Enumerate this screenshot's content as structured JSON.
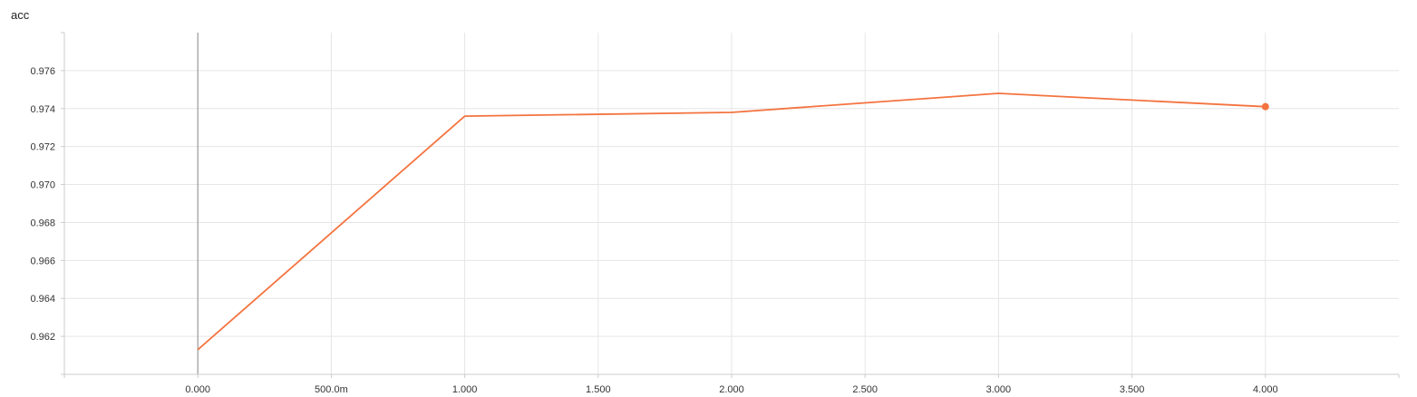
{
  "chart_data": {
    "type": "line",
    "title": "acc",
    "xlabel": "",
    "ylabel": "",
    "x_ticks": [
      {
        "value": 0.0,
        "label": "0.000"
      },
      {
        "value": 0.5,
        "label": "500.0m"
      },
      {
        "value": 1.0,
        "label": "1.000"
      },
      {
        "value": 1.5,
        "label": "1.500"
      },
      {
        "value": 2.0,
        "label": "2.000"
      },
      {
        "value": 2.5,
        "label": "2.500"
      },
      {
        "value": 3.0,
        "label": "3.000"
      },
      {
        "value": 3.5,
        "label": "3.500"
      },
      {
        "value": 4.0,
        "label": "4.000"
      }
    ],
    "y_ticks": [
      {
        "value": 0.962,
        "label": "0.962"
      },
      {
        "value": 0.964,
        "label": "0.964"
      },
      {
        "value": 0.966,
        "label": "0.966"
      },
      {
        "value": 0.968,
        "label": "0.968"
      },
      {
        "value": 0.97,
        "label": "0.970"
      },
      {
        "value": 0.972,
        "label": "0.972"
      },
      {
        "value": 0.974,
        "label": "0.974"
      },
      {
        "value": 0.976,
        "label": "0.976"
      }
    ],
    "xlim": [
      -0.5,
      4.5
    ],
    "ylim": [
      0.96,
      0.978
    ],
    "grid": true,
    "series": [
      {
        "color": "#f4733f",
        "x": [
          0,
          1,
          2,
          3,
          4
        ],
        "y": [
          0.9613,
          0.9736,
          0.9738,
          0.9748,
          0.9741
        ]
      }
    ],
    "colors": {
      "line": "#f4733f",
      "grid": "#e6e6e6",
      "axis": "#cccccc",
      "zero_line": "#999999"
    }
  }
}
